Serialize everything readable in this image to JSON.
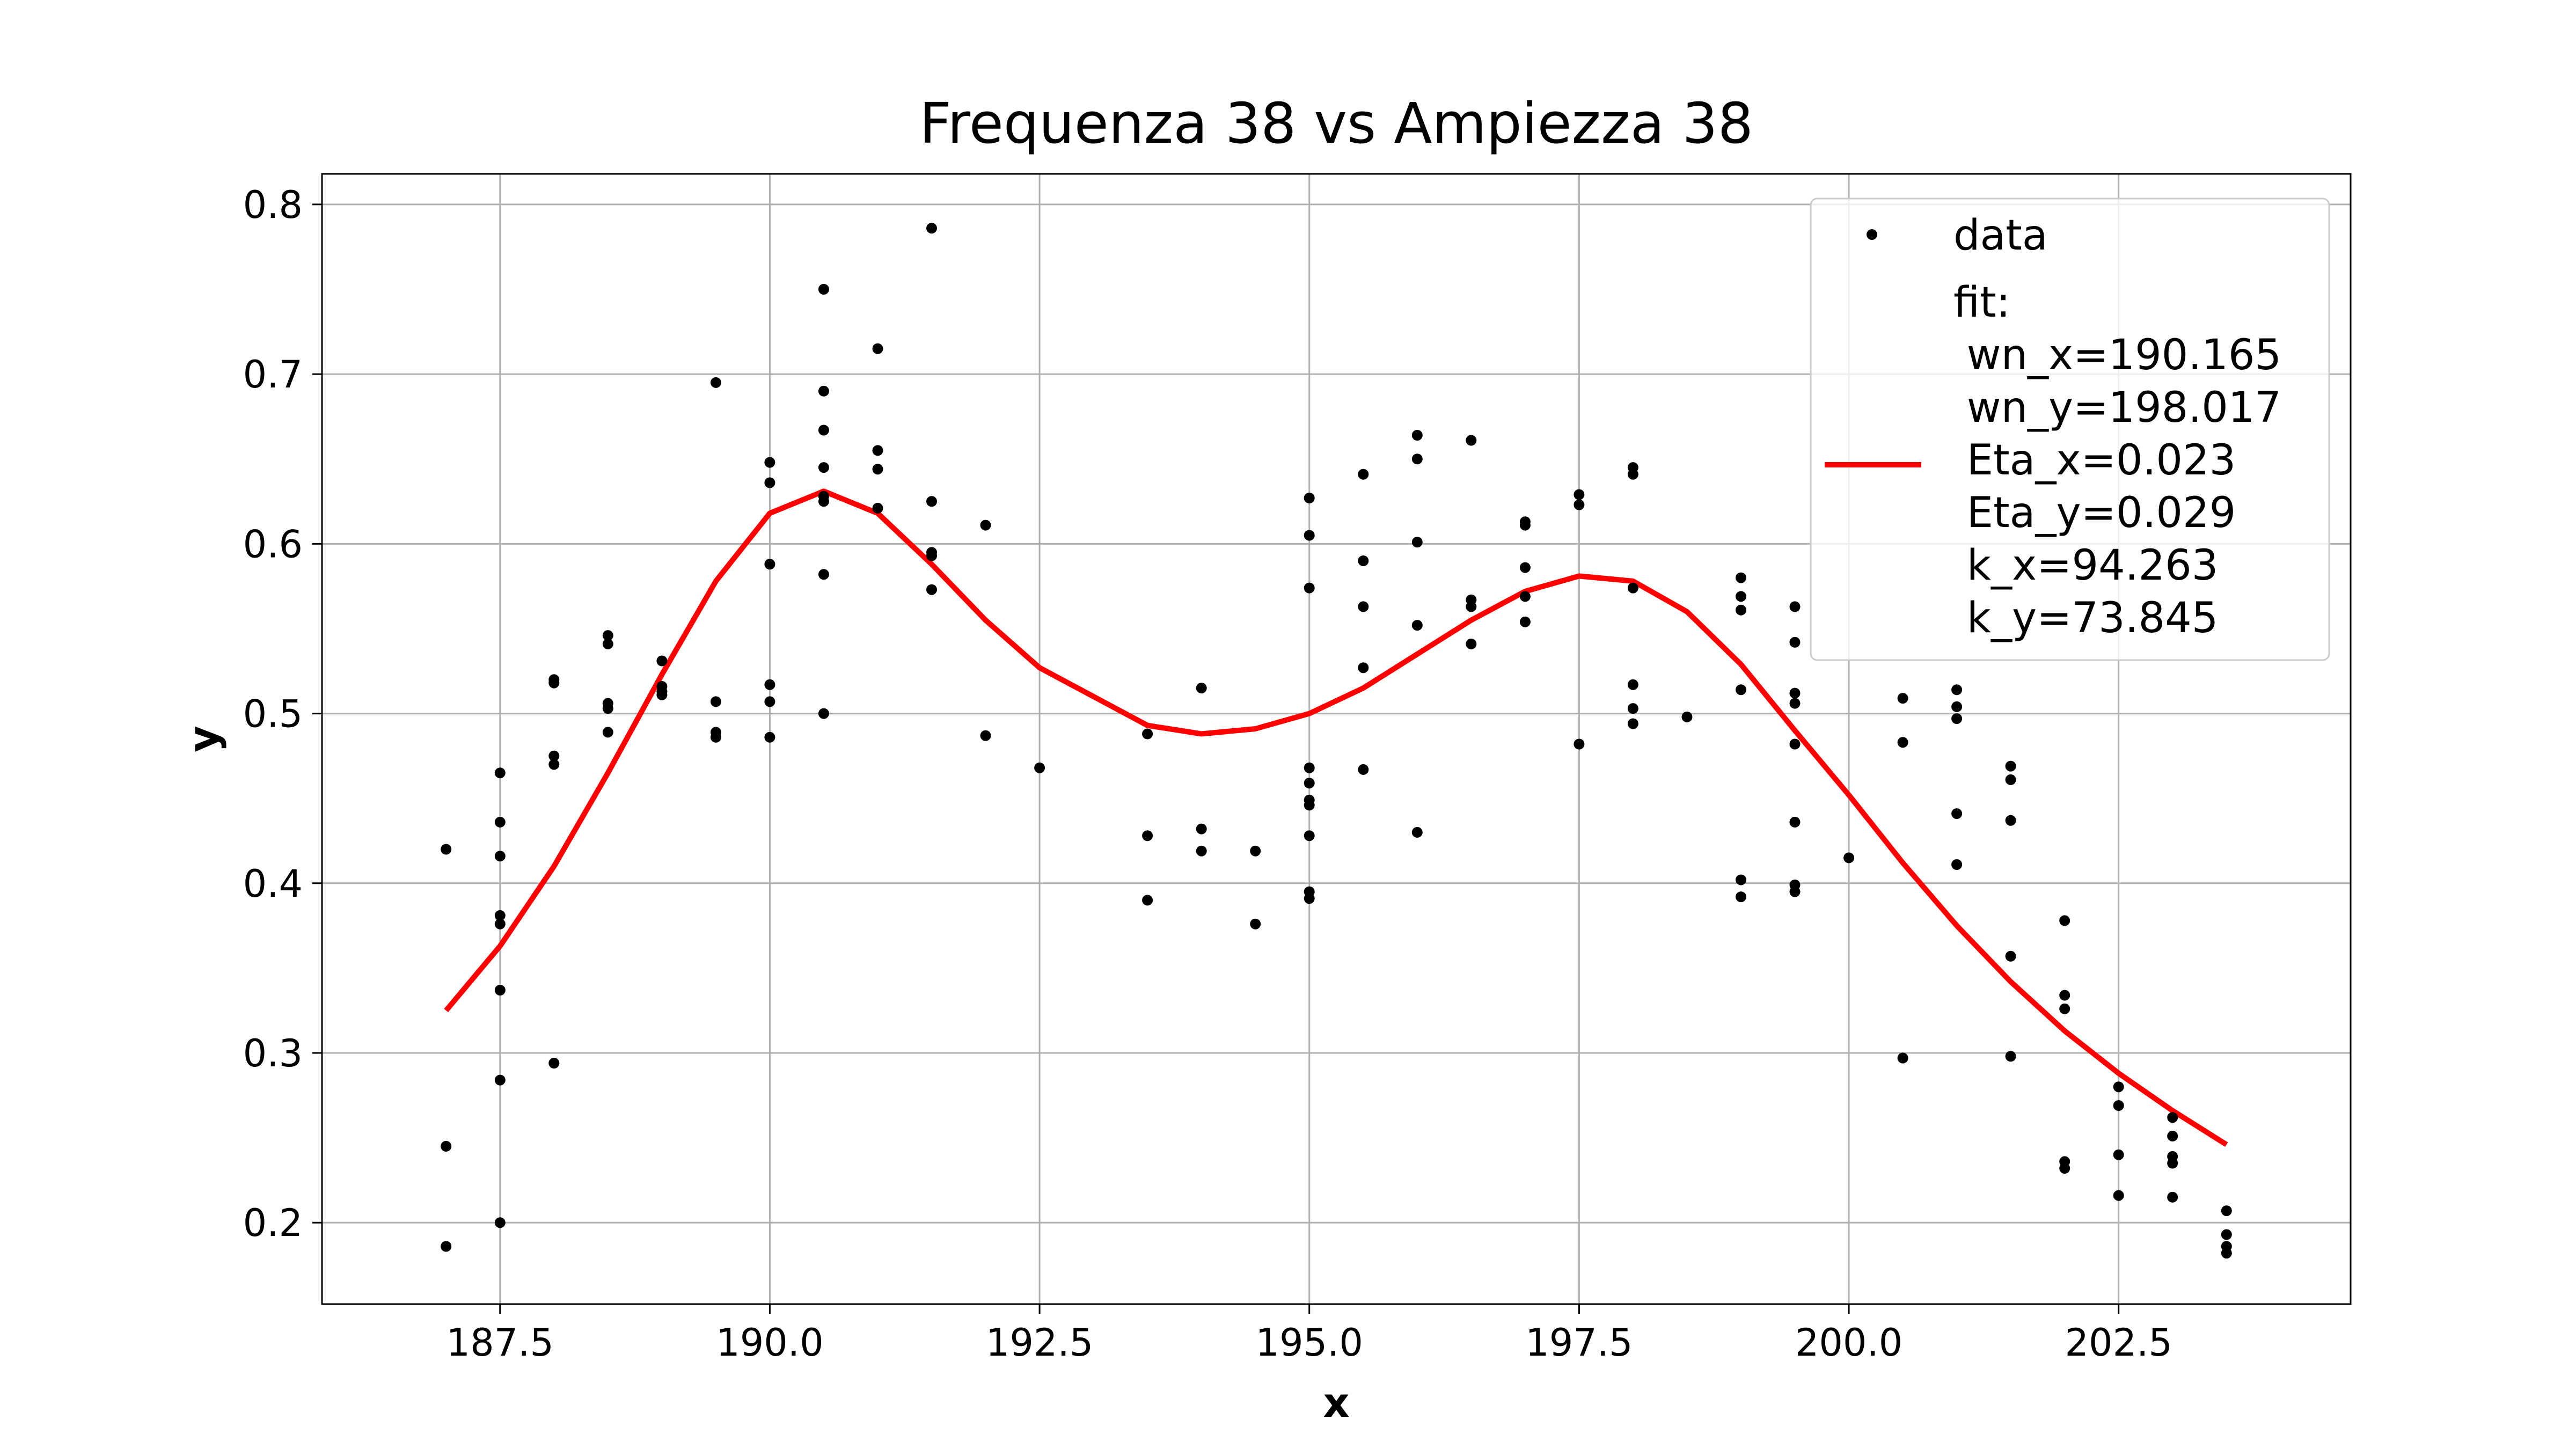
{
  "chart_data": {
    "type": "scatter",
    "title": "Frequenza 38 vs Ampiezza 38",
    "xlabel": "x",
    "ylabel": "y",
    "xlim": [
      185.85,
      204.65
    ],
    "ylim": [
      0.152,
      0.818
    ],
    "xticks": [
      187.5,
      190.0,
      192.5,
      195.0,
      197.5,
      200.0,
      202.5
    ],
    "xtick_labels": [
      "187.5",
      "190.0",
      "192.5",
      "195.0",
      "197.5",
      "200.0",
      "202.5"
    ],
    "yticks": [
      0.2,
      0.3,
      0.4,
      0.5,
      0.6,
      0.7,
      0.8
    ],
    "ytick_labels": [
      "0.2",
      "0.3",
      "0.4",
      "0.5",
      "0.6",
      "0.7",
      "0.8"
    ],
    "grid": true,
    "legend_position": "top-right",
    "series": [
      {
        "name": "data",
        "kind": "scatter",
        "color": "#000000",
        "points": [
          [
            187,
            0.42
          ],
          [
            187,
            0.245
          ],
          [
            187,
            0.186
          ],
          [
            187.5,
            0.465
          ],
          [
            187.5,
            0.436
          ],
          [
            187.5,
            0.416
          ],
          [
            187.5,
            0.381
          ],
          [
            187.5,
            0.376
          ],
          [
            187.5,
            0.337
          ],
          [
            187.5,
            0.284
          ],
          [
            187.5,
            0.2
          ],
          [
            188,
            0.52
          ],
          [
            188,
            0.518
          ],
          [
            188,
            0.475
          ],
          [
            188,
            0.47
          ],
          [
            188,
            0.294
          ],
          [
            188.5,
            0.546
          ],
          [
            188.5,
            0.541
          ],
          [
            188.5,
            0.506
          ],
          [
            188.5,
            0.503
          ],
          [
            188.5,
            0.489
          ],
          [
            189,
            0.531
          ],
          [
            189,
            0.516
          ],
          [
            189,
            0.513
          ],
          [
            189,
            0.511
          ],
          [
            189.5,
            0.695
          ],
          [
            189.5,
            0.507
          ],
          [
            189.5,
            0.489
          ],
          [
            189.5,
            0.486
          ],
          [
            190,
            0.648
          ],
          [
            190,
            0.636
          ],
          [
            190,
            0.588
          ],
          [
            190,
            0.517
          ],
          [
            190,
            0.507
          ],
          [
            190,
            0.486
          ],
          [
            190.5,
            0.75
          ],
          [
            190.5,
            0.69
          ],
          [
            190.5,
            0.667
          ],
          [
            190.5,
            0.645
          ],
          [
            190.5,
            0.628
          ],
          [
            190.5,
            0.625
          ],
          [
            190.5,
            0.582
          ],
          [
            190.5,
            0.5
          ],
          [
            191,
            0.715
          ],
          [
            191,
            0.655
          ],
          [
            191,
            0.644
          ],
          [
            191,
            0.621
          ],
          [
            191.5,
            0.786
          ],
          [
            191.5,
            0.625
          ],
          [
            191.5,
            0.595
          ],
          [
            191.5,
            0.593
          ],
          [
            191.5,
            0.573
          ],
          [
            192,
            0.611
          ],
          [
            192,
            0.487
          ],
          [
            192.5,
            0.468
          ],
          [
            193.5,
            0.488
          ],
          [
            193.5,
            0.428
          ],
          [
            193.5,
            0.39
          ],
          [
            194,
            0.515
          ],
          [
            194,
            0.432
          ],
          [
            194,
            0.419
          ],
          [
            194.5,
            0.419
          ],
          [
            194.5,
            0.376
          ],
          [
            195,
            0.627
          ],
          [
            195,
            0.605
          ],
          [
            195,
            0.574
          ],
          [
            195,
            0.468
          ],
          [
            195,
            0.459
          ],
          [
            195,
            0.449
          ],
          [
            195,
            0.446
          ],
          [
            195,
            0.428
          ],
          [
            195,
            0.395
          ],
          [
            195,
            0.391
          ],
          [
            195.5,
            0.641
          ],
          [
            195.5,
            0.59
          ],
          [
            195.5,
            0.563
          ],
          [
            195.5,
            0.527
          ],
          [
            195.5,
            0.467
          ],
          [
            196,
            0.664
          ],
          [
            196,
            0.65
          ],
          [
            196,
            0.601
          ],
          [
            196,
            0.552
          ],
          [
            196,
            0.43
          ],
          [
            196.5,
            0.661
          ],
          [
            196.5,
            0.567
          ],
          [
            196.5,
            0.563
          ],
          [
            196.5,
            0.541
          ],
          [
            197,
            0.613
          ],
          [
            197,
            0.611
          ],
          [
            197,
            0.586
          ],
          [
            197,
            0.569
          ],
          [
            197,
            0.554
          ],
          [
            197.5,
            0.629
          ],
          [
            197.5,
            0.623
          ],
          [
            197.5,
            0.482
          ],
          [
            198,
            0.645
          ],
          [
            198,
            0.641
          ],
          [
            198,
            0.574
          ],
          [
            198,
            0.517
          ],
          [
            198,
            0.503
          ],
          [
            198,
            0.494
          ],
          [
            198.5,
            0.498
          ],
          [
            199,
            0.58
          ],
          [
            199,
            0.569
          ],
          [
            199,
            0.561
          ],
          [
            199,
            0.514
          ],
          [
            199,
            0.402
          ],
          [
            199,
            0.392
          ],
          [
            199.5,
            0.563
          ],
          [
            199.5,
            0.542
          ],
          [
            199.5,
            0.512
          ],
          [
            199.5,
            0.506
          ],
          [
            199.5,
            0.482
          ],
          [
            199.5,
            0.436
          ],
          [
            199.5,
            0.399
          ],
          [
            199.5,
            0.395
          ],
          [
            200,
            0.415
          ],
          [
            200.5,
            0.509
          ],
          [
            200.5,
            0.483
          ],
          [
            200.5,
            0.297
          ],
          [
            201,
            0.514
          ],
          [
            201,
            0.504
          ],
          [
            201,
            0.497
          ],
          [
            201,
            0.441
          ],
          [
            201,
            0.411
          ],
          [
            201.5,
            0.469
          ],
          [
            201.5,
            0.461
          ],
          [
            201.5,
            0.437
          ],
          [
            201.5,
            0.357
          ],
          [
            201.5,
            0.298
          ],
          [
            202,
            0.378
          ],
          [
            202,
            0.334
          ],
          [
            202,
            0.326
          ],
          [
            202,
            0.236
          ],
          [
            202,
            0.232
          ],
          [
            202.5,
            0.28
          ],
          [
            202.5,
            0.269
          ],
          [
            202.5,
            0.24
          ],
          [
            202.5,
            0.216
          ],
          [
            203,
            0.262
          ],
          [
            203,
            0.251
          ],
          [
            203,
            0.239
          ],
          [
            203,
            0.235
          ],
          [
            203,
            0.215
          ],
          [
            203.5,
            0.207
          ],
          [
            203.5,
            0.193
          ],
          [
            203.5,
            0.186
          ],
          [
            203.5,
            0.182
          ]
        ]
      },
      {
        "name": "fit:\n wn_x=190.165\n wn_y=198.017\n Eta_x=0.023\n Eta_y=0.029\n k_x=94.263\n k_y=73.845",
        "kind": "line",
        "color": "#ff0000",
        "x": [
          187,
          187.5,
          188,
          188.5,
          189,
          189.5,
          190,
          190.5,
          191,
          191.5,
          192,
          192.5,
          193,
          193.5,
          194,
          194.5,
          195,
          195.5,
          196,
          196.5,
          197,
          197.5,
          198,
          198.5,
          199,
          199.5,
          200,
          200.5,
          201,
          201.5,
          202,
          202.5,
          203,
          203.5
        ],
        "y": [
          0.325,
          0.363,
          0.41,
          0.465,
          0.523,
          0.578,
          0.618,
          0.631,
          0.618,
          0.588,
          0.555,
          0.527,
          0.51,
          0.493,
          0.488,
          0.491,
          0.5,
          0.515,
          0.535,
          0.555,
          0.572,
          0.581,
          0.578,
          0.56,
          0.529,
          0.49,
          0.452,
          0.412,
          0.375,
          0.342,
          0.313,
          0.288,
          0.266,
          0.246
        ]
      }
    ],
    "legend": [
      {
        "label": "data"
      },
      {
        "lines": [
          "fit:",
          " wn_x=190.165",
          " wn_y=198.017",
          " Eta_x=0.023",
          " Eta_y=0.029",
          " k_x=94.263",
          " k_y=73.845"
        ]
      }
    ]
  }
}
